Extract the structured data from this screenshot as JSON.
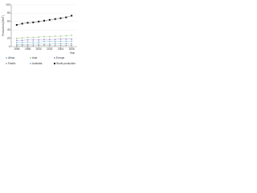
{
  "chart_data": {
    "type": "line",
    "y_label": "Production (MMT)",
    "x_label": "Year",
    "x": [
      1996,
      1997,
      1998,
      1999,
      2000,
      2001,
      2002,
      2003,
      2004,
      2005,
      2006
    ],
    "xlim": [
      1995,
      2007
    ],
    "xticks": [
      1996,
      1998,
      2000,
      2002,
      2004,
      2006
    ],
    "ylim": [
      0,
      100
    ],
    "yticks": [
      0,
      20,
      40,
      60,
      80,
      100
    ],
    "grid": true,
    "series": [
      {
        "name": "Africa",
        "color": "#6fa8dc",
        "marker": "circle",
        "values": [
          10,
          10,
          11,
          11,
          11,
          12,
          12,
          12,
          13,
          13,
          13
        ]
      },
      {
        "name": "Asia",
        "color": "#93c47d",
        "marker": "circle",
        "values": [
          20,
          21,
          22,
          22,
          23,
          24,
          24,
          25,
          25,
          26,
          27
        ]
      },
      {
        "name": "Europe",
        "color": "#8e7cc3",
        "marker": "circle",
        "values": [
          15,
          15,
          16,
          16,
          16,
          17,
          17,
          17,
          18,
          18,
          18
        ]
      },
      {
        "name": "Pacific",
        "color": "#999999",
        "marker": "circle",
        "values": [
          2,
          2,
          2,
          2,
          3,
          3,
          3,
          3,
          3,
          3,
          3
        ]
      },
      {
        "name": "Australia",
        "color": "#76a5af",
        "marker": "circle",
        "values": [
          5,
          5,
          5,
          6,
          6,
          6,
          6,
          7,
          7,
          7,
          7
        ]
      },
      {
        "name": "World production",
        "color": "#111111",
        "marker": "square",
        "values": [
          52,
          55,
          57,
          58,
          60,
          62,
          64,
          66,
          68,
          70,
          74
        ]
      }
    ]
  }
}
